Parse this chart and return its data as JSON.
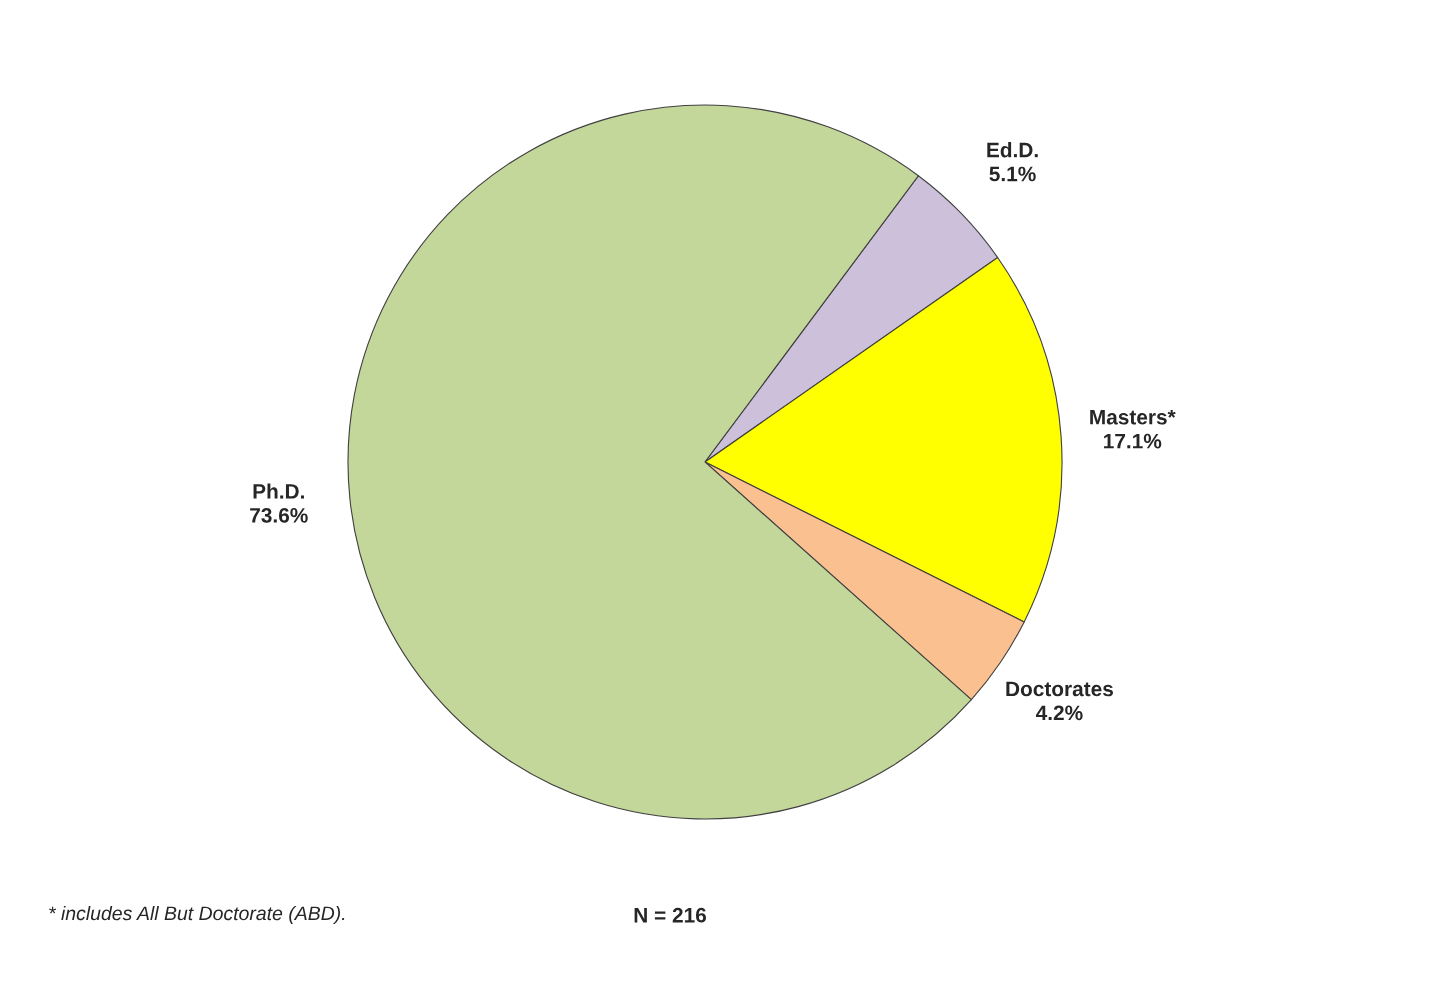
{
  "chart_data": {
    "type": "pie",
    "categories": [
      "Ed.D.",
      "Masters*",
      "Doctorates",
      "Ph.D."
    ],
    "values": [
      5.1,
      17.1,
      4.2,
      73.6
    ],
    "value_labels": [
      "5.1%",
      "17.1%",
      "4.2%",
      "73.6%"
    ],
    "colors": [
      "#ccc0da",
      "#ffff00",
      "#fac090",
      "#c4d79b"
    ],
    "annotations": [
      "* includes All But Doctorate (ABD).",
      "N = 216"
    ]
  }
}
